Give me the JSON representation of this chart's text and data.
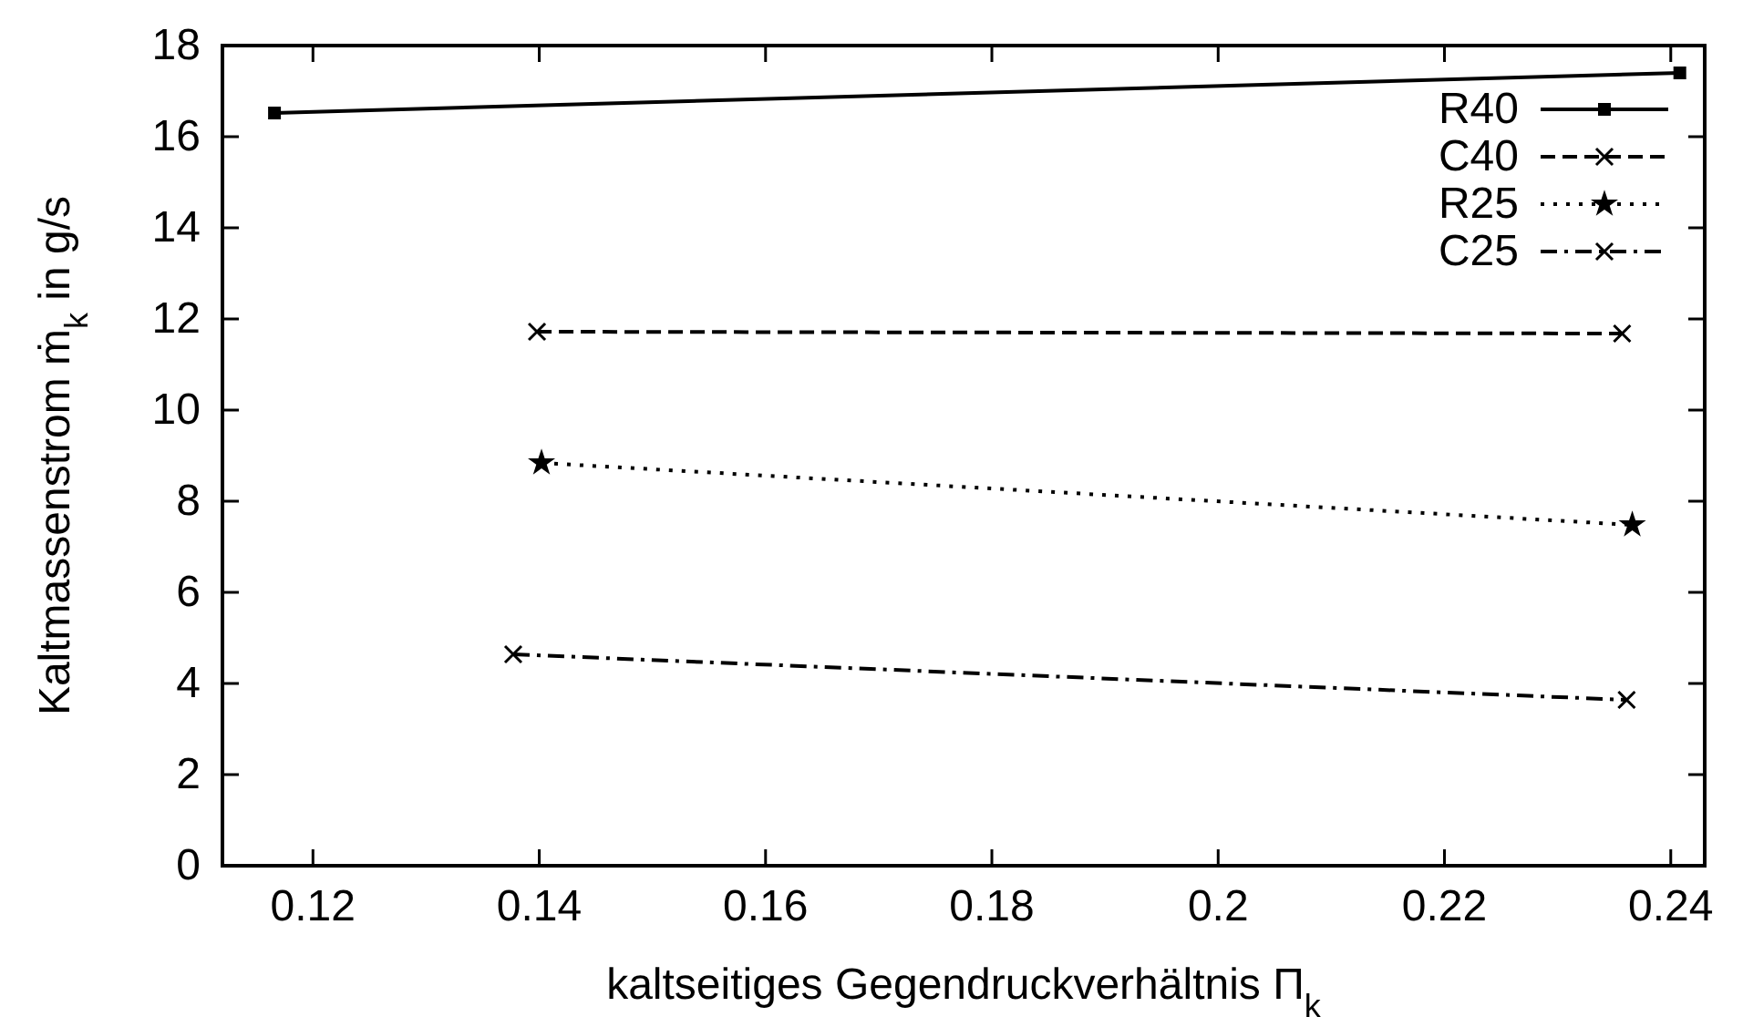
{
  "chart_data": {
    "type": "line",
    "xlabel": "kaltseitiges Gegendruckverhältnis Π$_{k}$",
    "ylabel": "Kaltmassenstrom ṁ$_{k}$ in g/s",
    "xlim": [
      0.112,
      0.243
    ],
    "xticks": [
      0.12,
      0.14,
      0.16,
      0.18,
      0.2,
      0.22,
      0.24
    ],
    "ylim": [
      0,
      18
    ],
    "yticks": [
      0,
      2,
      4,
      6,
      8,
      10,
      12,
      14,
      16,
      18
    ],
    "legend": "top right",
    "series": [
      {
        "name": "R40",
        "color": "#000000",
        "marker": "square",
        "line_style": "solid",
        "x": [
          0.1166,
          0.2408
        ],
        "values": [
          16.52,
          17.4
        ]
      },
      {
        "name": "C40",
        "color": "#000000",
        "marker": "cross",
        "line_style": "dashed",
        "x": [
          0.1398,
          0.2357
        ],
        "values": [
          11.72,
          11.68
        ]
      },
      {
        "name": "R25",
        "color": "#000000",
        "marker": "star",
        "line_style": "dotted",
        "x": [
          0.1402,
          0.2366
        ],
        "values": [
          8.84,
          7.48
        ]
      },
      {
        "name": "C25",
        "color": "#000000",
        "marker": "cross",
        "line_style": "dashdot",
        "x": [
          0.1377,
          0.2361
        ],
        "values": [
          4.64,
          3.64
        ]
      }
    ]
  }
}
